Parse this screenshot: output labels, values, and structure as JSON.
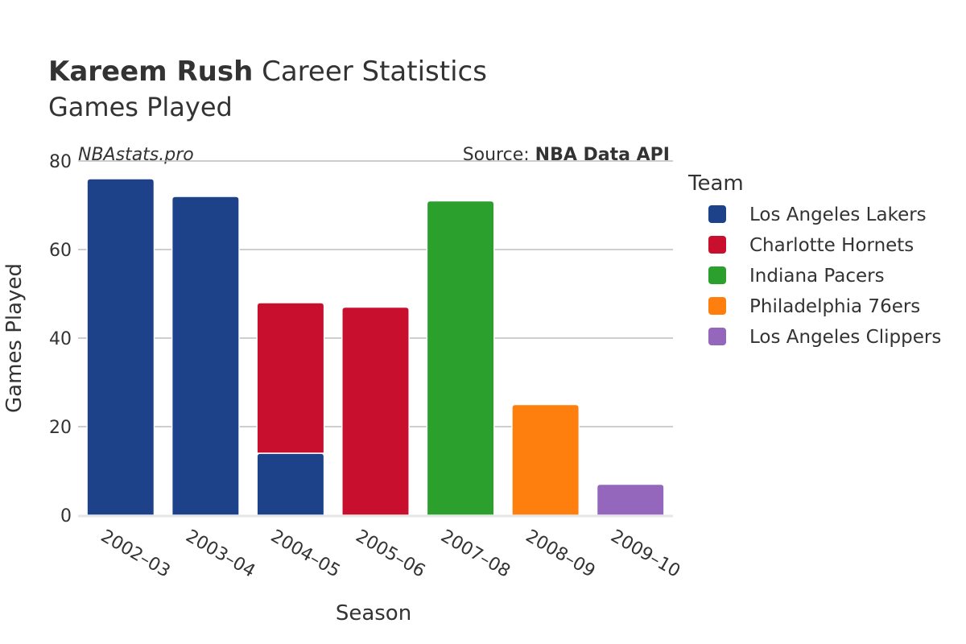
{
  "header": {
    "title_name": "Kareem Rush",
    "title_rest": " Career Statistics",
    "subtitle": "Games Played",
    "watermark": "NBAstats.pro",
    "source_prefix": "Source: ",
    "source_name": "NBA Data API"
  },
  "legend": {
    "title": "Team",
    "items": [
      {
        "name": "Los Angeles Lakers",
        "color": "#1d428a"
      },
      {
        "name": "Charlotte Hornets",
        "color": "#c8102e"
      },
      {
        "name": "Indiana Pacers",
        "color": "#2ca02c"
      },
      {
        "name": "Philadelphia 76ers",
        "color": "#ff7f0e"
      },
      {
        "name": "Los Angeles Clippers",
        "color": "#9467bd"
      }
    ]
  },
  "chart_data": {
    "type": "bar",
    "stacked": true,
    "xlabel": "Season",
    "ylabel": "Games Played",
    "ylim": [
      0,
      80
    ],
    "yticks": [
      0,
      20,
      40,
      60,
      80
    ],
    "grid": true,
    "legend_position": "right",
    "categories": [
      "2002–03",
      "2003–04",
      "2004–05",
      "2005–06",
      "2007–08",
      "2008–09",
      "2009–10"
    ],
    "series": [
      {
        "name": "Los Angeles Lakers",
        "color": "#1d428a",
        "values": [
          76,
          72,
          14,
          0,
          0,
          0,
          0
        ]
      },
      {
        "name": "Charlotte Hornets",
        "color": "#c8102e",
        "values": [
          0,
          0,
          34,
          47,
          0,
          0,
          0
        ]
      },
      {
        "name": "Indiana Pacers",
        "color": "#2ca02c",
        "values": [
          0,
          0,
          0,
          0,
          71,
          0,
          0
        ]
      },
      {
        "name": "Philadelphia 76ers",
        "color": "#ff7f0e",
        "values": [
          0,
          0,
          0,
          0,
          0,
          25,
          0
        ]
      },
      {
        "name": "Los Angeles Clippers",
        "color": "#9467bd",
        "values": [
          0,
          0,
          0,
          0,
          0,
          0,
          7
        ]
      }
    ]
  }
}
